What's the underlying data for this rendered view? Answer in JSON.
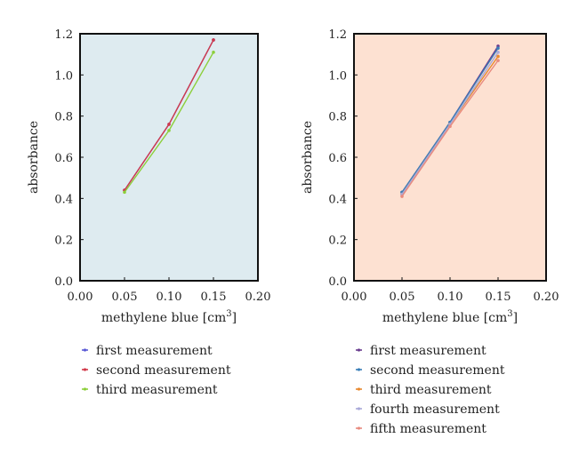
{
  "chart_data": [
    {
      "type": "line",
      "title": "",
      "xlabel": "methylene blue [cm",
      "xlabel_sup": "3",
      "xlabel_end": "]",
      "ylabel": "absorbance",
      "xlim": [
        0.0,
        0.2
      ],
      "ylim": [
        0.0,
        1.2
      ],
      "xticks": [
        "0.00",
        "0.05",
        "0.10",
        "0.15",
        "0.20"
      ],
      "yticks": [
        "0.0",
        "0.2",
        "0.4",
        "0.6",
        "0.8",
        "1.0",
        "1.2"
      ],
      "x": [
        0.05,
        0.1,
        0.15
      ],
      "background": "#deebf0",
      "legend_position": "below",
      "series": [
        {
          "name": "first measurement",
          "color": "#5b5bd6",
          "values": [
            0.44,
            0.76,
            1.17
          ]
        },
        {
          "name": "second measurement",
          "color": "#d23a4a",
          "values": [
            0.44,
            0.76,
            1.17
          ]
        },
        {
          "name": "third measurement",
          "color": "#8ccf3a",
          "values": [
            0.43,
            0.73,
            1.11
          ]
        }
      ]
    },
    {
      "type": "line",
      "title": "",
      "xlabel": "methylene blue [cm",
      "xlabel_sup": "3",
      "xlabel_end": "]",
      "ylabel": "absorbance",
      "xlim": [
        0.0,
        0.2
      ],
      "ylim": [
        0.0,
        1.2
      ],
      "xticks": [
        "0.00",
        "0.05",
        "0.10",
        "0.15",
        "0.20"
      ],
      "yticks": [
        "0.0",
        "0.2",
        "0.4",
        "0.6",
        "0.8",
        "1.0",
        "1.2"
      ],
      "x": [
        0.05,
        0.1,
        0.15
      ],
      "background": "#fde1d2",
      "legend_position": "below",
      "series": [
        {
          "name": "first measurement",
          "color": "#6a3d8f",
          "values": [
            0.43,
            0.77,
            1.14
          ]
        },
        {
          "name": "second measurement",
          "color": "#3a7fb8",
          "values": [
            0.43,
            0.77,
            1.13
          ]
        },
        {
          "name": "third measurement",
          "color": "#e8892e",
          "values": [
            0.42,
            0.76,
            1.09
          ]
        },
        {
          "name": "fourth measurement",
          "color": "#a9a9d9",
          "values": [
            0.42,
            0.76,
            1.11
          ]
        },
        {
          "name": "fifth measurement",
          "color": "#e88a7e",
          "values": [
            0.41,
            0.75,
            1.07
          ]
        }
      ]
    }
  ]
}
